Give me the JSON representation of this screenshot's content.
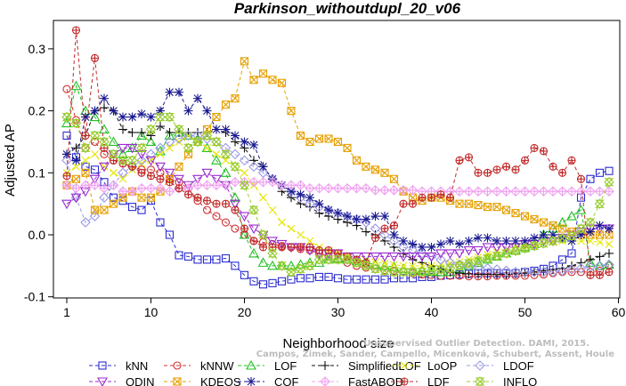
{
  "watermark": {
    "line1": "Unsupervised Outlier Detection. DAMI, 2015.",
    "line2": "Campos, Zimek, Sander, Campello, Micenková, Schubert, Assent, Houle"
  },
  "chart_data": {
    "type": "line",
    "title": "Parkinson_withoutdupl_20_v06",
    "xlabel": "Neighborhood size",
    "ylabel": "Adjusted AP",
    "xlim": [
      1,
      60
    ],
    "ylim": [
      -0.1,
      0.35
    ],
    "xticks": [
      1,
      10,
      20,
      30,
      40,
      50,
      60
    ],
    "yticks": [
      -0.1,
      0.0,
      0.1,
      0.2,
      0.3
    ],
    "ytick_labels": [
      "-0.1",
      "0.0",
      "0.1",
      "0.2",
      "0.3"
    ],
    "grid": false,
    "legend_position": "bottom",
    "series": [
      {
        "name": "kNN",
        "color": "#2b2bd0",
        "marker": "square",
        "values": [
          0.16,
          0.125,
          0.11,
          0.105,
          0.085,
          0.06,
          0.055,
          0.045,
          0.04,
          0.055,
          0.02,
          0.0,
          -0.033,
          -0.035,
          -0.04,
          -0.04,
          -0.04,
          -0.038,
          -0.05,
          -0.065,
          -0.075,
          -0.08,
          -0.078,
          -0.075,
          -0.072,
          -0.07,
          -0.07,
          -0.068,
          -0.068,
          -0.07,
          -0.072,
          -0.072,
          -0.072,
          -0.072,
          -0.072,
          -0.07,
          -0.07,
          -0.07,
          -0.068,
          -0.068,
          -0.066,
          -0.065,
          -0.064,
          -0.063,
          -0.062,
          -0.062,
          -0.062,
          -0.062,
          -0.062,
          -0.06,
          -0.058,
          -0.055,
          -0.05,
          -0.04,
          -0.03,
          0.06,
          0.09,
          0.1,
          0.103
        ]
      },
      {
        "name": "kNNW",
        "color": "#d23030",
        "marker": "circle",
        "values": [
          0.235,
          0.185,
          0.14,
          0.15,
          0.13,
          0.12,
          0.115,
          0.11,
          0.105,
          0.105,
          0.1,
          0.09,
          0.085,
          0.075,
          0.055,
          0.04,
          0.03,
          0.02,
          0.01,
          0.0,
          -0.01,
          -0.012,
          -0.015,
          -0.018,
          -0.02,
          -0.023,
          -0.025,
          -0.03,
          -0.035,
          -0.04,
          -0.045,
          -0.05,
          -0.053,
          -0.055,
          -0.057,
          -0.058,
          -0.06,
          -0.062,
          -0.064,
          -0.065,
          -0.066,
          -0.066,
          -0.066,
          -0.067,
          -0.067,
          -0.067,
          -0.066,
          -0.066,
          -0.066,
          -0.066,
          -0.065,
          -0.064,
          -0.062,
          -0.06,
          -0.06,
          -0.06,
          -0.06,
          -0.058,
          -0.05
        ]
      },
      {
        "name": "LOF",
        "color": "#22c022",
        "marker": "triangle-up",
        "values": [
          0.18,
          0.24,
          0.2,
          0.19,
          0.17,
          0.15,
          0.13,
          0.14,
          0.16,
          0.15,
          0.135,
          0.16,
          0.165,
          0.16,
          0.155,
          0.14,
          0.12,
          0.1,
          0.06,
          0.0,
          -0.03,
          -0.045,
          -0.05,
          -0.05,
          -0.05,
          -0.048,
          -0.045,
          -0.045,
          -0.04,
          -0.038,
          -0.04,
          -0.042,
          -0.045,
          -0.048,
          -0.05,
          -0.052,
          -0.055,
          -0.056,
          -0.058,
          -0.06,
          -0.06,
          -0.06,
          -0.055,
          -0.05,
          -0.045,
          -0.04,
          -0.035,
          -0.03,
          -0.025,
          -0.02,
          -0.015,
          0.0,
          0.01,
          0.02,
          0.03,
          0.04,
          -0.045,
          -0.05,
          -0.048
        ]
      },
      {
        "name": "SimplifiedLOF",
        "color": "#111111",
        "marker": "plus",
        "values": [
          0.13,
          0.14,
          0.16,
          0.2,
          0.205,
          0.2,
          0.17,
          0.165,
          0.165,
          0.16,
          0.175,
          0.165,
          0.165,
          0.165,
          0.165,
          0.165,
          0.17,
          0.165,
          0.15,
          0.14,
          0.12,
          0.11,
          0.09,
          0.07,
          0.06,
          0.05,
          0.045,
          0.035,
          0.03,
          0.025,
          0.02,
          0.015,
          0.005,
          0.0,
          -0.01,
          -0.02,
          -0.03,
          -0.04,
          -0.045,
          -0.05,
          -0.055,
          -0.06,
          -0.062,
          -0.063,
          -0.064,
          -0.064,
          -0.064,
          -0.064,
          -0.063,
          -0.062,
          -0.06,
          -0.058,
          -0.056,
          -0.054,
          -0.05,
          -0.045,
          -0.04,
          -0.035,
          -0.03
        ]
      },
      {
        "name": "LoOP",
        "color": "#e6e600",
        "marker": "x",
        "values": [
          0.1,
          0.11,
          0.12,
          0.13,
          0.11,
          0.1,
          0.09,
          0.105,
          0.115,
          0.12,
          0.13,
          0.14,
          0.15,
          0.16,
          0.15,
          0.14,
          0.13,
          0.12,
          0.11,
          0.1,
          0.08,
          0.06,
          0.04,
          0.02,
          0.01,
          0.0,
          -0.01,
          -0.02,
          -0.025,
          -0.03,
          -0.035,
          -0.04,
          -0.042,
          -0.044,
          -0.046,
          -0.048,
          -0.05,
          -0.05,
          -0.05,
          -0.05,
          -0.048,
          -0.046,
          -0.044,
          -0.04,
          -0.036,
          -0.032,
          -0.028,
          -0.024,
          -0.02,
          -0.018,
          -0.016,
          -0.014,
          -0.012,
          -0.01,
          -0.01,
          -0.01,
          -0.01,
          -0.012,
          -0.015
        ]
      },
      {
        "name": "LDOF",
        "color": "#9a9ae6",
        "marker": "diamond",
        "values": [
          0.12,
          0.06,
          0.02,
          0.03,
          0.06,
          0.08,
          0.1,
          0.11,
          0.12,
          0.13,
          0.14,
          0.15,
          0.155,
          0.16,
          0.16,
          0.155,
          0.15,
          0.14,
          0.13,
          0.12,
          0.11,
          0.1,
          0.09,
          0.08,
          0.07,
          0.06,
          0.05,
          0.045,
          0.04,
          0.035,
          0.03,
          0.025,
          0.02,
          0.01,
          0.0,
          -0.01,
          -0.02,
          -0.025,
          -0.03,
          -0.035,
          -0.04,
          -0.045,
          -0.048,
          -0.05,
          -0.052,
          -0.054,
          -0.056,
          -0.058,
          -0.06,
          -0.06,
          -0.06,
          -0.06,
          -0.06,
          -0.058,
          -0.056,
          -0.054,
          -0.052,
          -0.05,
          -0.048
        ]
      },
      {
        "name": "ODIN",
        "color": "#9a2bd0",
        "marker": "triangle-down",
        "values": [
          0.05,
          0.06,
          0.07,
          0.09,
          0.11,
          0.13,
          0.14,
          0.14,
          0.13,
          0.12,
          0.11,
          0.1,
          0.09,
          0.08,
          0.09,
          0.1,
          0.09,
          0.08,
          0.05,
          0.03,
          0.01,
          0.0,
          -0.01,
          -0.015,
          -0.02,
          -0.02,
          -0.025,
          -0.03,
          -0.03,
          -0.03,
          -0.035,
          -0.035,
          -0.035,
          -0.035,
          -0.035,
          -0.035,
          -0.035,
          -0.035,
          -0.035,
          -0.035,
          -0.03,
          -0.03,
          -0.03,
          -0.025,
          -0.025,
          -0.02,
          -0.02,
          -0.02,
          -0.02,
          -0.015,
          -0.015,
          -0.01,
          -0.01,
          -0.005,
          0.0,
          0.005,
          0.01,
          0.01,
          0.01
        ]
      },
      {
        "name": "KDEOS",
        "color": "#e6a000",
        "marker": "square-x",
        "values": [
          0.08,
          0.09,
          0.1,
          0.04,
          0.04,
          0.05,
          0.06,
          0.07,
          0.06,
          0.06,
          0.07,
          0.09,
          0.11,
          0.13,
          0.15,
          0.17,
          0.19,
          0.21,
          0.22,
          0.28,
          0.25,
          0.26,
          0.25,
          0.245,
          0.2,
          0.16,
          0.15,
          0.155,
          0.155,
          0.15,
          0.14,
          0.12,
          0.11,
          0.105,
          0.1,
          0.09,
          0.07,
          0.06,
          0.055,
          0.06,
          0.06,
          0.055,
          0.05,
          0.05,
          0.048,
          0.045,
          0.045,
          0.04,
          0.035,
          0.03,
          0.025,
          0.02,
          0.015,
          0.01,
          0.005,
          0.0,
          0.0,
          0.0,
          0.0
        ]
      },
      {
        "name": "COF",
        "color": "#1a1a90",
        "marker": "star",
        "values": [
          0.13,
          0.12,
          0.19,
          0.2,
          0.22,
          0.2,
          0.19,
          0.19,
          0.195,
          0.19,
          0.2,
          0.23,
          0.23,
          0.2,
          0.22,
          0.2,
          0.17,
          0.17,
          0.16,
          0.15,
          0.145,
          0.11,
          0.09,
          0.08,
          0.07,
          0.065,
          0.06,
          0.05,
          0.04,
          0.035,
          0.03,
          0.025,
          0.025,
          0.03,
          0.03,
          0.0,
          -0.01,
          -0.015,
          -0.02,
          -0.02,
          -0.015,
          -0.01,
          -0.015,
          -0.01,
          -0.005,
          -0.005,
          -0.01,
          -0.01,
          -0.01,
          -0.01,
          -0.005,
          0.0,
          0.0,
          -0.005,
          -0.01,
          0.0,
          0.005,
          0.015,
          0.01
        ]
      },
      {
        "name": "FastABOD",
        "color": "#f0a0f0",
        "marker": "diamond-plus",
        "values": [
          0.08,
          0.075,
          0.08,
          0.08,
          0.075,
          0.08,
          0.07,
          0.07,
          0.075,
          0.075,
          0.075,
          0.07,
          0.075,
          0.075,
          0.08,
          0.08,
          0.08,
          0.08,
          0.085,
          0.085,
          0.085,
          0.085,
          0.085,
          0.08,
          0.08,
          0.08,
          0.075,
          0.075,
          0.075,
          0.075,
          0.075,
          0.075,
          0.075,
          0.072,
          0.072,
          0.072,
          0.072,
          0.072,
          0.07,
          0.07,
          0.07,
          0.07,
          0.07,
          0.07,
          0.07,
          0.07,
          0.07,
          0.07,
          0.07,
          0.07,
          0.07,
          0.07,
          0.07,
          0.07,
          0.07,
          0.07,
          0.07,
          0.07,
          0.07
        ]
      },
      {
        "name": "LDF",
        "color": "#c02828",
        "marker": "circle-plus",
        "values": [
          0.095,
          0.33,
          0.16,
          0.285,
          0.14,
          0.12,
          0.115,
          0.11,
          0.1,
          0.095,
          0.09,
          0.085,
          0.075,
          0.065,
          0.06,
          0.055,
          0.05,
          0.05,
          0.04,
          0.01,
          -0.01,
          -0.02,
          -0.02,
          -0.02,
          -0.02,
          -0.02,
          -0.02,
          -0.025,
          -0.025,
          -0.03,
          -0.035,
          -0.04,
          -0.045,
          -0.005,
          0.01,
          0.015,
          0.05,
          0.05,
          0.06,
          0.06,
          0.065,
          0.06,
          0.12,
          0.125,
          0.1,
          0.1,
          0.105,
          0.11,
          0.105,
          0.12,
          0.14,
          0.135,
          0.11,
          0.1,
          0.12,
          0.09,
          -0.065,
          -0.065,
          -0.06
        ]
      },
      {
        "name": "INFLO",
        "color": "#9acd32",
        "marker": "hourglass",
        "values": [
          0.19,
          0.18,
          0.14,
          0.16,
          0.15,
          0.13,
          0.12,
          0.12,
          0.14,
          0.17,
          0.19,
          0.19,
          0.17,
          0.14,
          0.15,
          0.16,
          0.15,
          0.13,
          0.11,
          0.08,
          0.04,
          0.0,
          -0.03,
          -0.05,
          -0.06,
          -0.055,
          -0.05,
          -0.04,
          -0.04,
          -0.04,
          -0.04,
          -0.045,
          -0.05,
          -0.055,
          -0.058,
          -0.06,
          -0.06,
          -0.06,
          -0.06,
          -0.058,
          -0.056,
          -0.054,
          -0.05,
          -0.046,
          -0.042,
          -0.038,
          -0.034,
          -0.03,
          -0.026,
          -0.022,
          -0.018,
          -0.014,
          -0.01,
          -0.006,
          -0.002,
          0.01,
          0.02,
          0.05,
          0.085
        ]
      }
    ]
  }
}
